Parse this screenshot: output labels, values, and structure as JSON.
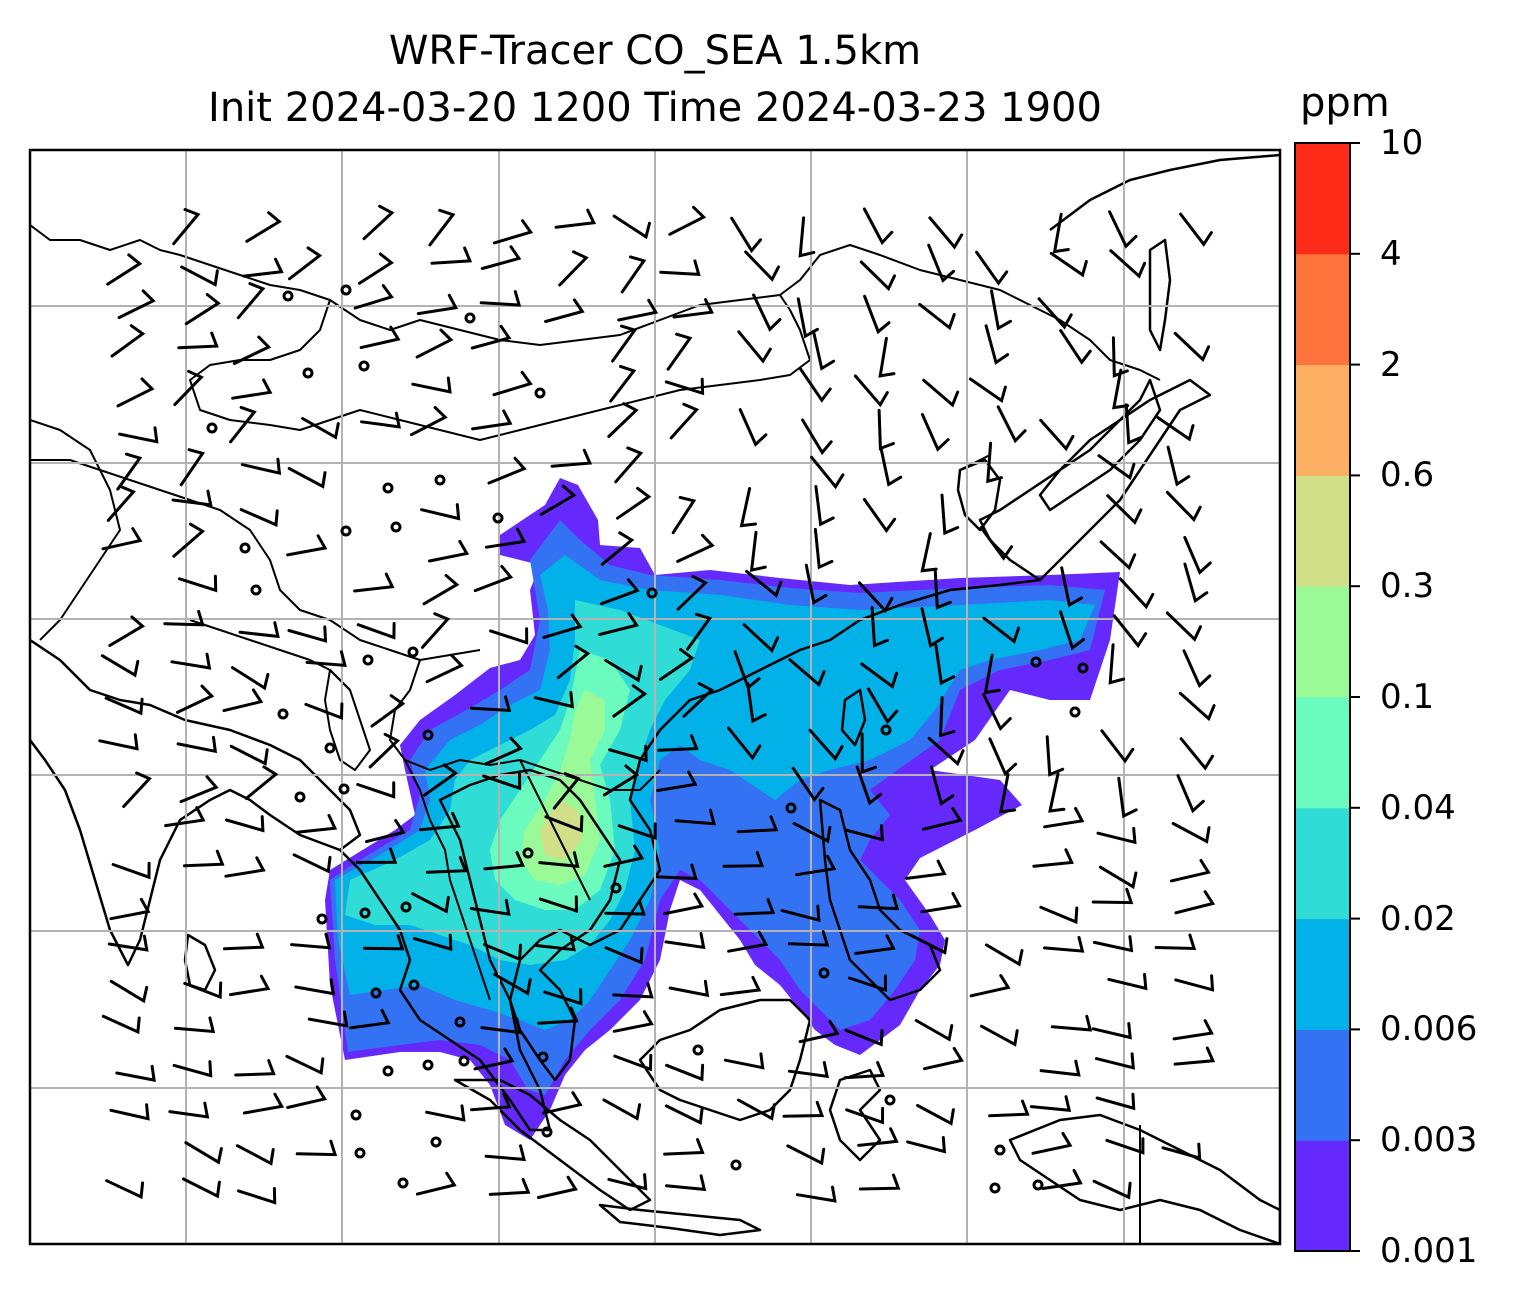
{
  "title_line1": "WRF-Tracer CO_SEA 1.5km",
  "title_line2": "Init 2024-03-20 1200 Time 2024-03-23 1900",
  "colorbar": {
    "unit": "ppm",
    "levels": [
      "0.001",
      "0.003",
      "0.006",
      "0.02",
      "0.04",
      "0.1",
      "0.3",
      "0.6",
      "2",
      "4",
      "10"
    ],
    "colors": [
      "#6529fb",
      "#3373f3",
      "#03b1e9",
      "#2fddd6",
      "#6bfbbe",
      "#9afa98",
      "#d0df88",
      "#fdb063",
      "#fe723c",
      "#fe2b18"
    ]
  },
  "map": {
    "gridlines": true,
    "features": [
      "coastlines",
      "country-borders",
      "wind-barbs",
      "co-tracer-shading"
    ],
    "colors": {
      "land": "#ffffff",
      "coast": "#000000",
      "grid": "#b3b3b3"
    }
  }
}
